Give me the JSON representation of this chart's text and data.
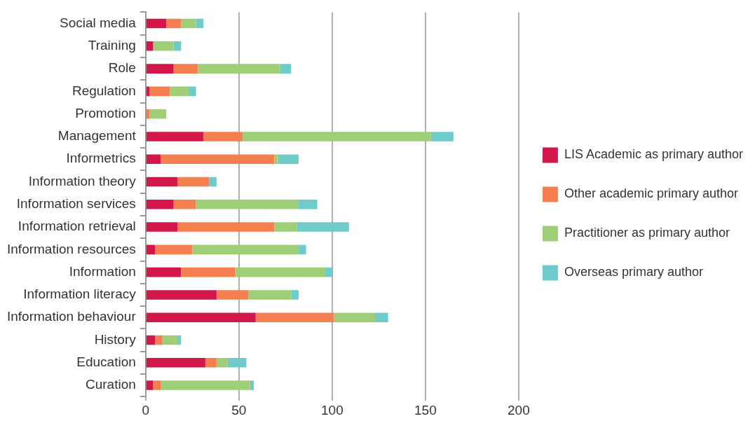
{
  "chart_data": {
    "type": "bar",
    "orientation": "horizontal",
    "stacked": true,
    "categories": [
      "Social media",
      "Training",
      "Role",
      "Regulation",
      "Promotion",
      "Management",
      "Informetrics",
      "Information theory",
      "Information services",
      "Information retrieval",
      "Information resources",
      "Information",
      "Information literacy",
      "Information behaviour",
      "History",
      "Education",
      "Curation"
    ],
    "series": [
      {
        "name": "LIS Academic as primary author",
        "color": "#d4174a",
        "values": [
          11,
          4,
          15,
          2,
          0,
          31,
          8,
          17,
          15,
          17,
          5,
          19,
          38,
          59,
          5,
          32,
          4
        ]
      },
      {
        "name": "Other academic primary author",
        "color": "#f4804f",
        "values": [
          8,
          0,
          13,
          11,
          2,
          21,
          61,
          17,
          12,
          52,
          20,
          29,
          17,
          42,
          4,
          6,
          4
        ]
      },
      {
        "name": "Practitioner as primary author",
        "color": "#9ecf78",
        "values": [
          8,
          11,
          44,
          10,
          9,
          101,
          2,
          0,
          55,
          12,
          57,
          48,
          23,
          22,
          8,
          6,
          48
        ]
      },
      {
        "name": "Overseas primary author",
        "color": "#6ecbca",
        "values": [
          4,
          4,
          6,
          4,
          0,
          12,
          11,
          4,
          10,
          28,
          4,
          4,
          4,
          7,
          2,
          10,
          2
        ]
      }
    ],
    "xlim": [
      0,
      200
    ],
    "xticks": [
      0,
      50,
      100,
      150,
      200
    ],
    "grid": "x",
    "legend": "right"
  }
}
